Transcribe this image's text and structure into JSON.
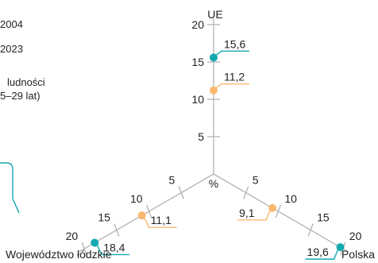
{
  "legend": {
    "year_2004": "2004",
    "year_2023": "2023",
    "share_line1": "ludności",
    "share_line2": "5–29 lat)"
  },
  "colors": {
    "series_2004": "#f9b970",
    "series_2023": "#13a9b1",
    "axis": "#b3b3b3",
    "text": "#222222"
  },
  "chart_data": {
    "type": "radar",
    "unit": "%",
    "axes": [
      "UE",
      "Polska",
      "Województwo łódzkie"
    ],
    "ticks": [
      5,
      10,
      15,
      20
    ],
    "max": 20,
    "series": [
      {
        "name": "2004",
        "values": [
          11.2,
          9.1,
          11.1
        ],
        "labels": [
          "11,2",
          "9,1",
          "11,1"
        ]
      },
      {
        "name": "2023",
        "values": [
          15.6,
          19.6,
          18.4
        ],
        "labels": [
          "15,6",
          "19,6",
          "18,4"
        ]
      }
    ]
  }
}
